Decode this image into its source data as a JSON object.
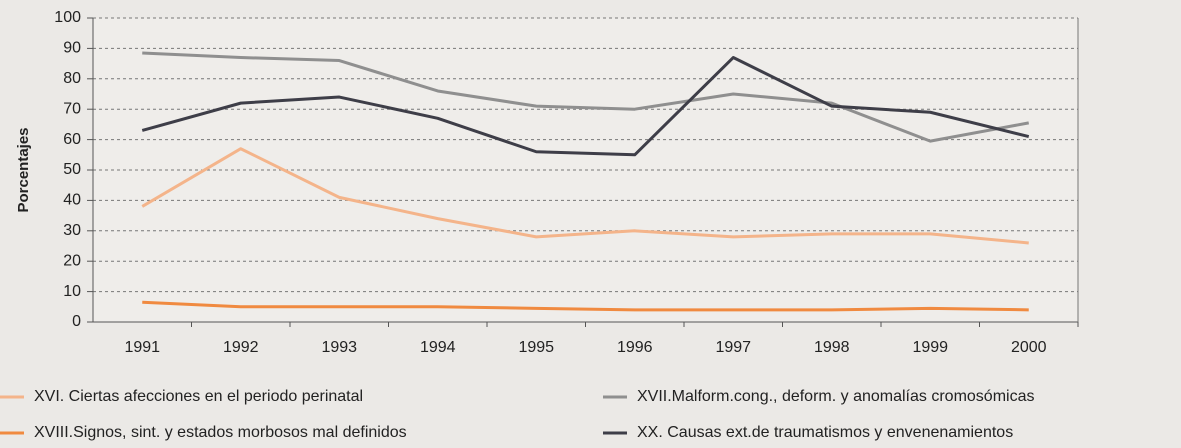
{
  "chart_data": {
    "type": "line",
    "y_label": "Porcentajes",
    "categories": [
      "1991",
      "1992",
      "1993",
      "1994",
      "1995",
      "1996",
      "1997",
      "1998",
      "1999",
      "2000"
    ],
    "series": [
      {
        "name": "XVI. Ciertas afecciones en el periodo perinatal",
        "color": "#f4b48a",
        "values": [
          38,
          57,
          41,
          34,
          28,
          30,
          28,
          29,
          29,
          26
        ]
      },
      {
        "name": "XVII.Malform.cong., deform. y anomalías cromosómicas",
        "color": "#8f8f8f",
        "values": [
          88.5,
          87,
          86,
          76,
          71,
          70,
          75,
          72,
          59.5,
          65.5
        ]
      },
      {
        "name": "XVIII.Signos, sint. y estados morbosos mal definidos",
        "color": "#f08a40",
        "values": [
          6.5,
          5,
          5,
          5,
          4.5,
          4,
          4,
          4,
          4.5,
          4
        ]
      },
      {
        "name": "XX. Causas ext.de traumatismos y envenenamientos",
        "color": "#3e3e48",
        "values": [
          63,
          72,
          74,
          67,
          56,
          55,
          87,
          71,
          69,
          61
        ]
      }
    ],
    "ylim": [
      0,
      100
    ],
    "yticks": [
      0,
      10,
      20,
      30,
      40,
      50,
      60,
      70,
      80,
      90,
      100
    ],
    "grid": true
  }
}
